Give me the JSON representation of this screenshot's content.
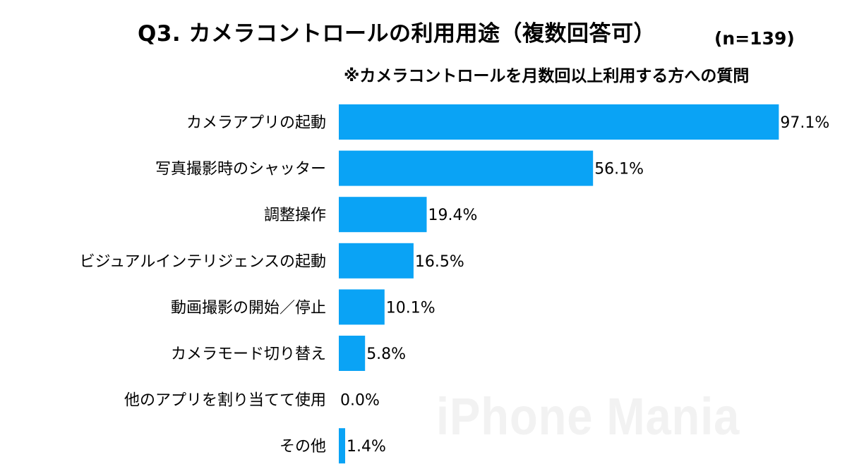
{
  "chart_data": {
    "type": "bar",
    "orientation": "horizontal",
    "title": "Q3. カメラコントロールの利用用途（複数回答可）",
    "sample_size": "(n=139)",
    "subtitle": "※カメラコントロールを月数回以上利用する方への質問",
    "watermark": "iPhone Mania",
    "categories": [
      "カメラアプリの起動",
      "写真撮影時のシャッター",
      "調整操作",
      "ビジュアルインテリジェンスの起動",
      "動画撮影の開始／停止",
      "カメラモード切り替え",
      "他のアプリを割り当てて使用",
      "その他"
    ],
    "values": [
      97.1,
      56.1,
      19.4,
      16.5,
      10.1,
      5.8,
      0.0,
      1.4
    ],
    "value_labels": [
      "97.1%",
      "56.1%",
      "19.4%",
      "16.5%",
      "10.1%",
      "5.8%",
      "0.0%",
      "1.4%"
    ],
    "unit": "%",
    "xlim": [
      0,
      100
    ],
    "grid": false,
    "legend": "none",
    "bar_color": "#0aa3f5"
  }
}
